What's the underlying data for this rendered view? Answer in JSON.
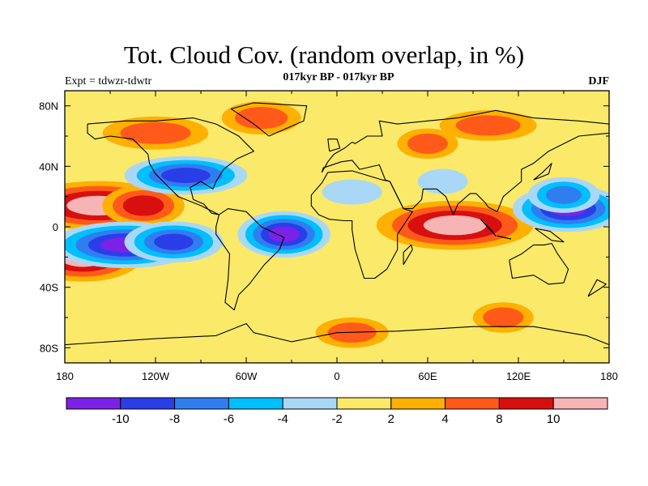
{
  "header": {
    "title": "Tot. Cloud Cov. (random overlap, in %)",
    "subtitle": "017kyr BP - 017kyr BP",
    "left_label": "Expt = tdwzr-tdwtr",
    "right_label": "DJF"
  },
  "axes": {
    "y_ticks": [
      "80N",
      "40N",
      "0",
      "40S",
      "80S"
    ],
    "x_ticks": [
      "180",
      "120W",
      "60W",
      "0",
      "60E",
      "120E",
      "180"
    ]
  },
  "colorbar": {
    "colors": [
      "#7b22e6",
      "#2a3ee8",
      "#2f7ef0",
      "#00bfff",
      "#a8d8f5",
      "#fbe96a",
      "#ffb000",
      "#ff5a1a",
      "#d80f0f",
      "#f7b4b4"
    ],
    "labels": [
      "-10",
      "-8",
      "-6",
      "-4",
      "-2",
      "2",
      "4",
      "8",
      "10"
    ]
  },
  "chart_data": {
    "type": "heatmap",
    "title": "Tot. Cloud Cov. (random overlap, in %)",
    "subtitle": "017kyr BP - 017kyr BP",
    "season": "DJF",
    "experiment": "Expt = tdwzr-tdwtr",
    "x_range": [
      -180,
      180
    ],
    "y_range": [
      -90,
      90
    ],
    "x_ticks": [
      -180,
      -120,
      -60,
      0,
      60,
      120,
      180
    ],
    "y_ticks": [
      80,
      40,
      0,
      -40,
      -80
    ],
    "contour_levels": [
      -10,
      -8,
      -6,
      -4,
      -2,
      2,
      4,
      8,
      10
    ],
    "background_range": "-2 to 2",
    "features": [
      {
        "lon": -158,
        "lat": 14,
        "value": 12
      },
      {
        "lon": -168,
        "lat": -20,
        "value": 12
      },
      {
        "lon": -128,
        "lat": 14,
        "value": 9
      },
      {
        "lon": -140,
        "lat": -12,
        "value": -11
      },
      {
        "lon": -108,
        "lat": -10,
        "value": -9
      },
      {
        "lon": -35,
        "lat": -5,
        "value": -11
      },
      {
        "lon": 78,
        "lat": 1,
        "value": 12
      },
      {
        "lon": 153,
        "lat": 12,
        "value": -11
      },
      {
        "lon": 150,
        "lat": 21,
        "value": -7
      },
      {
        "lon": -100,
        "lat": 34,
        "value": -8
      },
      {
        "lon": 10,
        "lat": 23,
        "value": -3
      },
      {
        "lon": 70,
        "lat": 30,
        "value": -3
      },
      {
        "lon": -120,
        "lat": 62,
        "value": 6
      },
      {
        "lon": -50,
        "lat": 72,
        "value": 6
      },
      {
        "lon": 60,
        "lat": 55,
        "value": 5
      },
      {
        "lon": 100,
        "lat": 67,
        "value": 5
      },
      {
        "lon": 10,
        "lat": -70,
        "value": 5
      },
      {
        "lon": 110,
        "lat": -60,
        "value": 5
      }
    ]
  }
}
